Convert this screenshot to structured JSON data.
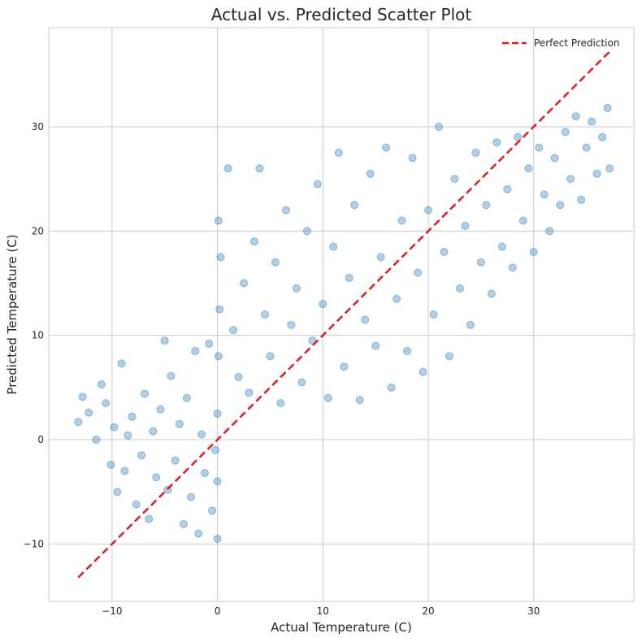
{
  "chart_data": {
    "type": "scatter",
    "title": "Actual vs. Predicted Scatter Plot",
    "xlabel": "Actual Temperature (C)",
    "ylabel": "Predicted Temperature (C)",
    "xlim": [
      -16,
      39.5
    ],
    "ylim": [
      -15.5,
      39.5
    ],
    "xticks": [
      -10,
      0,
      10,
      20,
      30
    ],
    "yticks": [
      -10,
      0,
      10,
      20,
      30
    ],
    "grid": true,
    "legend_position": "top-right",
    "point_color": "#1f77b4",
    "point_alpha": 0.35,
    "series": [
      {
        "type": "scatter",
        "points": [
          [
            -13.2,
            1.7
          ],
          [
            -12.8,
            4.1
          ],
          [
            -12.2,
            2.6
          ],
          [
            -11.5,
            0.0
          ],
          [
            -11.0,
            5.3
          ],
          [
            -10.6,
            3.5
          ],
          [
            -10.1,
            -2.4
          ],
          [
            -9.8,
            1.2
          ],
          [
            -9.5,
            -5.0
          ],
          [
            -9.1,
            7.3
          ],
          [
            -8.8,
            -3.0
          ],
          [
            -8.5,
            0.4
          ],
          [
            -8.1,
            2.2
          ],
          [
            -7.7,
            -6.2
          ],
          [
            -7.2,
            -1.5
          ],
          [
            -6.9,
            4.4
          ],
          [
            -6.5,
            -7.6
          ],
          [
            -6.1,
            0.8
          ],
          [
            -5.8,
            -3.6
          ],
          [
            -5.4,
            2.9
          ],
          [
            -5.0,
            9.5
          ],
          [
            -4.7,
            -4.8
          ],
          [
            -4.4,
            6.1
          ],
          [
            -4.0,
            -2.0
          ],
          [
            -3.6,
            1.5
          ],
          [
            -3.2,
            -8.1
          ],
          [
            -2.9,
            4.0
          ],
          [
            -2.5,
            -5.5
          ],
          [
            -2.1,
            8.5
          ],
          [
            -1.8,
            -9.0
          ],
          [
            -1.5,
            0.5
          ],
          [
            -1.2,
            -3.2
          ],
          [
            -0.8,
            9.2
          ],
          [
            -0.5,
            -6.8
          ],
          [
            -0.2,
            -1.0
          ],
          [
            0.0,
            -9.5
          ],
          [
            0.0,
            -4.0
          ],
          [
            0.0,
            2.5
          ],
          [
            0.1,
            8.0
          ],
          [
            0.2,
            12.5
          ],
          [
            0.3,
            17.5
          ],
          [
            0.1,
            21.0
          ],
          [
            1.0,
            26.0
          ],
          [
            1.5,
            10.5
          ],
          [
            2.0,
            6.0
          ],
          [
            2.5,
            15.0
          ],
          [
            3.0,
            4.5
          ],
          [
            3.5,
            19.0
          ],
          [
            4.0,
            26.0
          ],
          [
            4.5,
            12.0
          ],
          [
            5.0,
            8.0
          ],
          [
            5.5,
            17.0
          ],
          [
            6.0,
            3.5
          ],
          [
            6.5,
            22.0
          ],
          [
            7.0,
            11.0
          ],
          [
            7.5,
            14.5
          ],
          [
            8.0,
            5.5
          ],
          [
            8.5,
            20.0
          ],
          [
            9.0,
            9.5
          ],
          [
            9.5,
            24.5
          ],
          [
            10.0,
            13.0
          ],
          [
            10.5,
            4.0
          ],
          [
            11.0,
            18.5
          ],
          [
            11.5,
            27.5
          ],
          [
            12.0,
            7.0
          ],
          [
            12.5,
            15.5
          ],
          [
            13.0,
            22.5
          ],
          [
            13.5,
            3.8
          ],
          [
            14.0,
            11.5
          ],
          [
            14.5,
            25.5
          ],
          [
            15.0,
            9.0
          ],
          [
            15.5,
            17.5
          ],
          [
            16.0,
            28.0
          ],
          [
            16.5,
            5.0
          ],
          [
            17.0,
            13.5
          ],
          [
            17.5,
            21.0
          ],
          [
            18.0,
            8.5
          ],
          [
            18.5,
            27.0
          ],
          [
            19.0,
            16.0
          ],
          [
            19.5,
            6.5
          ],
          [
            20.0,
            22.0
          ],
          [
            20.5,
            12.0
          ],
          [
            21.0,
            30.0
          ],
          [
            21.5,
            18.0
          ],
          [
            22.0,
            8.0
          ],
          [
            22.5,
            25.0
          ],
          [
            23.0,
            14.5
          ],
          [
            23.5,
            20.5
          ],
          [
            24.0,
            11.0
          ],
          [
            24.5,
            27.5
          ],
          [
            25.0,
            17.0
          ],
          [
            25.5,
            22.5
          ],
          [
            26.0,
            14.0
          ],
          [
            26.5,
            28.5
          ],
          [
            27.0,
            18.5
          ],
          [
            27.5,
            24.0
          ],
          [
            28.0,
            16.5
          ],
          [
            28.5,
            29.0
          ],
          [
            29.0,
            21.0
          ],
          [
            29.5,
            26.0
          ],
          [
            30.0,
            18.0
          ],
          [
            30.5,
            28.0
          ],
          [
            31.0,
            23.5
          ],
          [
            31.5,
            20.0
          ],
          [
            32.0,
            27.0
          ],
          [
            32.5,
            22.5
          ],
          [
            33.0,
            29.5
          ],
          [
            33.5,
            25.0
          ],
          [
            34.0,
            31.0
          ],
          [
            34.5,
            23.0
          ],
          [
            35.0,
            28.0
          ],
          [
            35.5,
            30.5
          ],
          [
            36.0,
            25.5
          ],
          [
            36.5,
            29.0
          ],
          [
            37.0,
            31.8
          ],
          [
            37.2,
            26.0
          ]
        ]
      },
      {
        "name": "Perfect Prediction",
        "type": "line",
        "style": "dashed",
        "color": "#e41a1c",
        "points": [
          [
            -13.2,
            -13.2
          ],
          [
            37.2,
            37.2
          ]
        ]
      }
    ]
  }
}
